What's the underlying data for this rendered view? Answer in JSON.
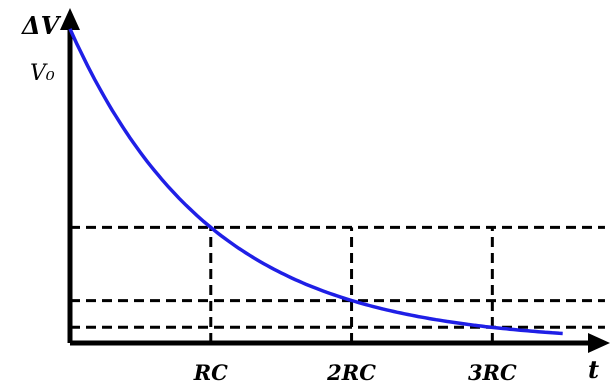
{
  "chart_data": {
    "type": "line",
    "title": "",
    "ylabel": "ΔV",
    "xlabel": "t",
    "y_start_label": "V₀",
    "x_ticks": [
      {
        "x": 1,
        "label": "RC"
      },
      {
        "x": 2,
        "label": "2RC"
      },
      {
        "x": 3,
        "label": "3RC"
      }
    ],
    "xlim": [
      0,
      3.85
    ],
    "ylim": [
      0,
      1.06
    ],
    "curve": {
      "V0": 1,
      "tau": 1,
      "x_end": 3.5
    },
    "reference_levels": [
      0.368,
      0.135,
      0.05
    ],
    "colors": {
      "curve": "#1f1fe6",
      "axes": "#000000",
      "dashes": "#000000"
    },
    "grid": false
  }
}
